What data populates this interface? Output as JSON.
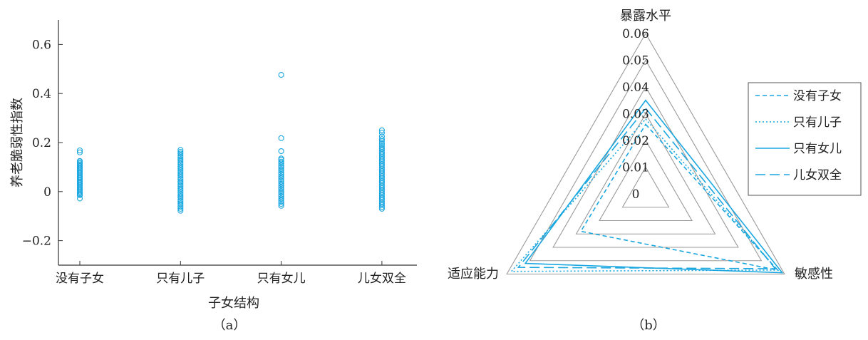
{
  "chart_data": [
    {
      "type": "scatter",
      "panel_label": "（a）",
      "xlabel": "子女结构",
      "ylabel": "养老脆弱性指数",
      "categories": [
        "没有子女",
        "只有儿子",
        "只有女儿",
        "儿女双全"
      ],
      "ylim": [
        -0.3,
        0.7
      ],
      "yticks": [
        -0.2,
        0,
        0.2,
        0.4,
        0.6
      ],
      "ytick_labels": [
        "−0.2",
        "0",
        "0.2",
        "0.4",
        "0.6"
      ],
      "marker": "circle",
      "color": "#1aa7e0",
      "series": [
        {
          "category": "没有子女",
          "values": [
            -0.028,
            -0.015,
            -0.01,
            -0.005,
            0.0,
            0.005,
            0.01,
            0.015,
            0.02,
            0.025,
            0.03,
            0.035,
            0.04,
            0.045,
            0.05,
            0.055,
            0.06,
            0.065,
            0.07,
            0.075,
            0.08,
            0.085,
            0.09,
            0.095,
            0.1,
            0.105,
            0.11,
            0.115,
            0.12,
            0.125,
            0.16,
            0.168
          ]
        },
        {
          "category": "只有儿子",
          "values": [
            -0.078,
            -0.07,
            -0.062,
            -0.055,
            -0.048,
            -0.04,
            -0.033,
            -0.025,
            -0.018,
            -0.01,
            -0.003,
            0.005,
            0.012,
            0.02,
            0.027,
            0.035,
            0.042,
            0.05,
            0.057,
            0.065,
            0.072,
            0.08,
            0.087,
            0.095,
            0.102,
            0.11,
            0.117,
            0.125,
            0.132,
            0.14,
            0.147,
            0.155,
            0.162,
            0.17
          ]
        },
        {
          "category": "只有女儿",
          "values": [
            -0.058,
            -0.05,
            -0.042,
            -0.035,
            -0.028,
            -0.02,
            -0.013,
            -0.005,
            0.002,
            0.01,
            0.017,
            0.025,
            0.032,
            0.04,
            0.047,
            0.055,
            0.062,
            0.07,
            0.077,
            0.085,
            0.092,
            0.1,
            0.107,
            0.115,
            0.122,
            0.13,
            0.135,
            0.165,
            0.218,
            0.476
          ]
        },
        {
          "category": "儿女双全",
          "values": [
            -0.07,
            -0.063,
            -0.056,
            -0.049,
            -0.042,
            -0.035,
            -0.028,
            -0.021,
            -0.014,
            -0.007,
            0.0,
            0.007,
            0.014,
            0.021,
            0.028,
            0.035,
            0.042,
            0.049,
            0.056,
            0.063,
            0.07,
            0.077,
            0.084,
            0.091,
            0.098,
            0.105,
            0.112,
            0.119,
            0.126,
            0.133,
            0.14,
            0.147,
            0.154,
            0.161,
            0.168,
            0.175,
            0.182,
            0.19,
            0.198,
            0.206,
            0.214,
            0.225,
            0.24,
            0.25
          ]
        }
      ]
    },
    {
      "type": "radar",
      "panel_label": "（b）",
      "axes": [
        "暴露水平",
        "敏感性",
        "适应能力"
      ],
      "rlim": [
        0,
        0.06
      ],
      "rticks": [
        0,
        0.01,
        0.02,
        0.03,
        0.04,
        0.05,
        0.06
      ],
      "rtick_labels": [
        "0",
        "0.01",
        "0.02",
        "0.03",
        "0.04",
        "0.05",
        "0.06"
      ],
      "grid": true,
      "legend_position": "right",
      "series": [
        {
          "name": "没有子女",
          "style": "dashed",
          "values": [
            0.026,
            0.057,
            0.028
          ]
        },
        {
          "name": "只有儿子",
          "style": "dotted",
          "values": [
            0.028,
            0.057,
            0.058
          ]
        },
        {
          "name": "只有女儿",
          "style": "solid",
          "values": [
            0.035,
            0.059,
            0.052
          ]
        },
        {
          "name": "儿女双全",
          "style": "longdash",
          "values": [
            0.032,
            0.056,
            0.055
          ]
        }
      ],
      "color": "#1aa7e0"
    }
  ]
}
